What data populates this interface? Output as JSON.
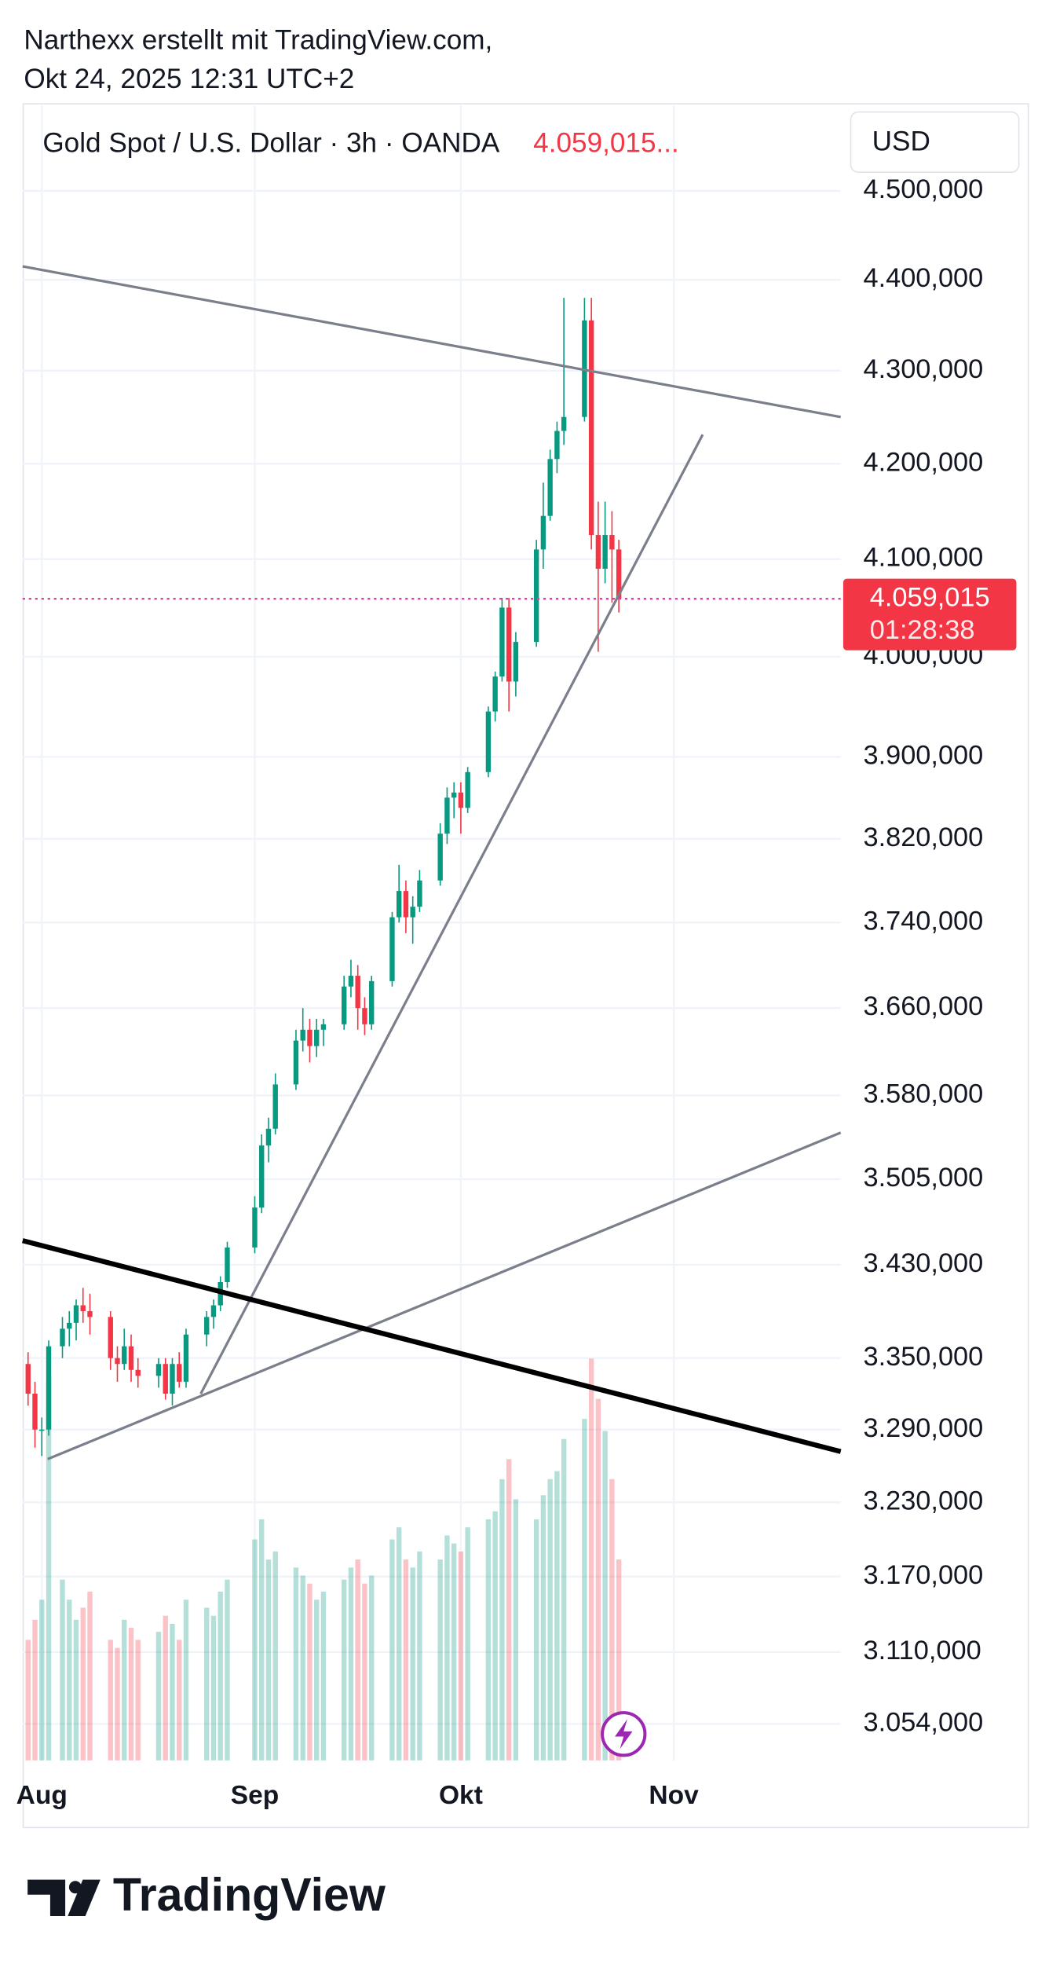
{
  "header": {
    "line1": "Narthexx erstellt mit TradingView.com,",
    "line2": "Okt 24, 2025 12:31 UTC+2"
  },
  "chart_data": {
    "type": "candlestick",
    "title": "Gold Spot / U.S. Dollar · 3h · OANDA",
    "legend_price": "4.059,015...",
    "currency": "USD",
    "last_price": {
      "value": 4059.015,
      "label": "4.059,015"
    },
    "countdown": "01:28:38",
    "log_scale": true,
    "grid": true,
    "up_color": "#089981",
    "down_color": "#f23645",
    "last_price_color": "#e040a0",
    "x": [
      -2,
      -1,
      0,
      1,
      3,
      4,
      5,
      6,
      7,
      10,
      11,
      12,
      13,
      14,
      17,
      18,
      19,
      20,
      21,
      24,
      25,
      26,
      27,
      31,
      32,
      33,
      34,
      37,
      38,
      39,
      40,
      41,
      44,
      45,
      46,
      47,
      48,
      51,
      52,
      53,
      54,
      55,
      58,
      59,
      60,
      61,
      62,
      65,
      66,
      67,
      68,
      69,
      72,
      73,
      74,
      75,
      76,
      79,
      80,
      81,
      82,
      83,
      84
    ],
    "open": [
      3345,
      3320,
      3290,
      3290,
      3360,
      3375,
      3380,
      3395,
      3390,
      3385,
      3350,
      3345,
      3360,
      3340,
      3335,
      3345,
      3320,
      3345,
      3330,
      3370,
      3385,
      3395,
      3415,
      3445,
      3480,
      3535,
      3550,
      3590,
      3630,
      3640,
      3625,
      3640,
      3645,
      3680,
      3690,
      3660,
      3645,
      3685,
      3745,
      3770,
      3745,
      3755,
      3780,
      3825,
      3860,
      3865,
      3850,
      3885,
      3945,
      3980,
      4050,
      3975,
      4015,
      4110,
      4145,
      4205,
      4235,
      4250,
      4355,
      4125,
      4090,
      4125,
      4110
    ],
    "high": [
      3355,
      3330,
      3300,
      3365,
      3385,
      3390,
      3400,
      3410,
      3405,
      3390,
      3360,
      3375,
      3370,
      3350,
      3350,
      3350,
      3350,
      3355,
      3375,
      3390,
      3400,
      3420,
      3450,
      3490,
      3545,
      3560,
      3600,
      3640,
      3660,
      3650,
      3650,
      3650,
      3690,
      3705,
      3700,
      3670,
      3690,
      3750,
      3795,
      3780,
      3765,
      3790,
      3835,
      3870,
      3875,
      3875,
      3890,
      3950,
      3985,
      4060,
      4060,
      4025,
      4120,
      4180,
      4215,
      4245,
      4380,
      4380,
      4380,
      4160,
      4160,
      4150,
      4120
    ],
    "low": [
      3310,
      3275,
      3268,
      3285,
      3350,
      3360,
      3365,
      3380,
      3370,
      3340,
      3330,
      3340,
      3330,
      3325,
      3325,
      3315,
      3310,
      3325,
      3325,
      3360,
      3375,
      3390,
      3410,
      3440,
      3475,
      3520,
      3545,
      3585,
      3620,
      3610,
      3615,
      3625,
      3640,
      3670,
      3640,
      3635,
      3640,
      3680,
      3740,
      3730,
      3720,
      3750,
      3775,
      3815,
      3840,
      3825,
      3845,
      3880,
      3935,
      3975,
      3945,
      3960,
      4010,
      4090,
      4140,
      4190,
      4220,
      4245,
      4110,
      4005,
      4075,
      4055,
      4045
    ],
    "close": [
      3320,
      3290,
      3290,
      3360,
      3375,
      3380,
      3395,
      3390,
      3385,
      3350,
      3345,
      3360,
      3340,
      3335,
      3345,
      3320,
      3345,
      3330,
      3370,
      3385,
      3395,
      3415,
      3445,
      3480,
      3535,
      3550,
      3590,
      3630,
      3640,
      3625,
      3640,
      3645,
      3680,
      3690,
      3660,
      3645,
      3685,
      3745,
      3770,
      3745,
      3755,
      3780,
      3825,
      3860,
      3865,
      3850,
      3885,
      3945,
      3980,
      4050,
      3975,
      4015,
      4110,
      4145,
      4205,
      4235,
      4250,
      4355,
      4125,
      4090,
      4125,
      4110,
      4059.015
    ],
    "volume": [
      30,
      35,
      40,
      95,
      45,
      40,
      35,
      38,
      42,
      30,
      28,
      35,
      33,
      30,
      32,
      36,
      34,
      30,
      40,
      38,
      36,
      42,
      45,
      55,
      60,
      50,
      52,
      48,
      46,
      44,
      40,
      42,
      45,
      48,
      50,
      44,
      46,
      55,
      58,
      50,
      48,
      52,
      50,
      56,
      54,
      52,
      58,
      60,
      62,
      70,
      75,
      65,
      60,
      66,
      70,
      72,
      80,
      85,
      100,
      90,
      82,
      70,
      50
    ],
    "xlim": [
      -2.8,
      116.3
    ],
    "xticks": [
      {
        "value": 0,
        "label": "Aug"
      },
      {
        "value": 31,
        "label": "Sep"
      },
      {
        "value": 61,
        "label": "Okt"
      },
      {
        "value": 92,
        "label": "Nov"
      }
    ],
    "ylim": [
      3026,
      4598
    ],
    "yticks": [
      {
        "value": 4500,
        "label": "4.500,000"
      },
      {
        "value": 4400,
        "label": "4.400,000"
      },
      {
        "value": 4300,
        "label": "4.300,000"
      },
      {
        "value": 4200,
        "label": "4.200,000"
      },
      {
        "value": 4100,
        "label": "4.100,000"
      },
      {
        "value": 4000,
        "label": "4.000,000"
      },
      {
        "value": 3900,
        "label": "3.900,000"
      },
      {
        "value": 3820,
        "label": "3.820,000"
      },
      {
        "value": 3740,
        "label": "3.740,000"
      },
      {
        "value": 3660,
        "label": "3.660,000"
      },
      {
        "value": 3580,
        "label": "3.580,000"
      },
      {
        "value": 3505,
        "label": "3.505,000"
      },
      {
        "value": 3430,
        "label": "3.430,000"
      },
      {
        "value": 3350,
        "label": "3.350,000"
      },
      {
        "value": 3290,
        "label": "3.290,000"
      },
      {
        "value": 3230,
        "label": "3.230,000"
      },
      {
        "value": 3170,
        "label": "3.170,000"
      },
      {
        "value": 3110,
        "label": "3.110,000"
      },
      {
        "value": 3054,
        "label": "3.054,000"
      }
    ]
  },
  "brand": "TradingView"
}
